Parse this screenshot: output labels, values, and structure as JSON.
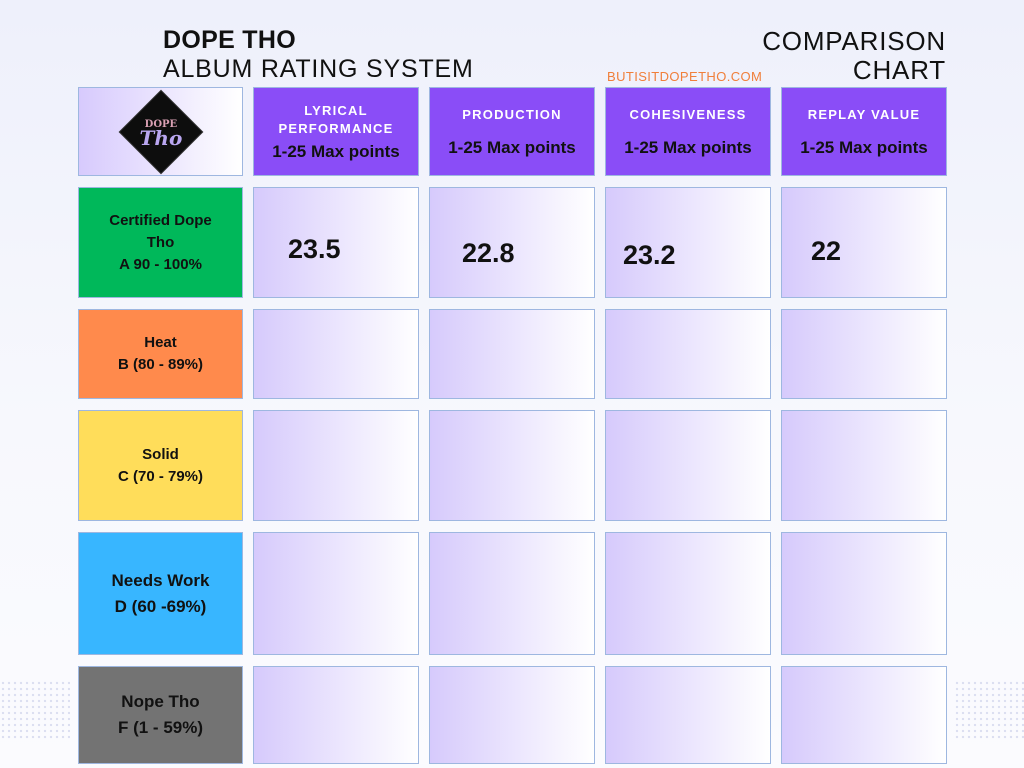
{
  "title": {
    "line1": "DOPE THO",
    "line2": "ALBUM RATING SYSTEM",
    "right_line1": "COMPARISON",
    "right_line2": "CHART"
  },
  "website": "BUTISITDOPETHO.COM",
  "logo": {
    "top": "DOPE",
    "bottom": "Tho"
  },
  "columns": [
    {
      "label_line1": "LYRICAL",
      "label_line2": "PERFORMANCE",
      "points": "1-25 Max points"
    },
    {
      "label_line1": "PRODUCTION",
      "label_line2": "",
      "points": "1-25 Max points"
    },
    {
      "label_line1": "COHESIVENESS",
      "label_line2": "",
      "points": "1-25 Max points"
    },
    {
      "label_line1": "REPLAY VALUE",
      "label_line2": "",
      "points": "1-25 Max points"
    }
  ],
  "grades": [
    {
      "line1": "Certified Dope",
      "line2": "Tho",
      "line3": "A 90 - 100%",
      "color": "#00b85a"
    },
    {
      "line1": "Heat",
      "line2": "B (80 - 89%)",
      "color": "#ff8a4c"
    },
    {
      "line1": "Solid",
      "line2": "C (70 - 79%)",
      "color": "#ffdd5a"
    },
    {
      "line1": "Needs Work",
      "line2": "D (60 -69%)",
      "color": "#38b6ff"
    },
    {
      "line1": "Nope Tho",
      "line2": "F (1 - 59%)",
      "color": "#737373"
    }
  ],
  "scores": [
    "23.5",
    "22.8",
    "23.2",
    "22"
  ],
  "colors": {
    "header": "#8a4df7",
    "accent": "#f07f3a",
    "cell_gradient_start": "#d6cafc"
  }
}
